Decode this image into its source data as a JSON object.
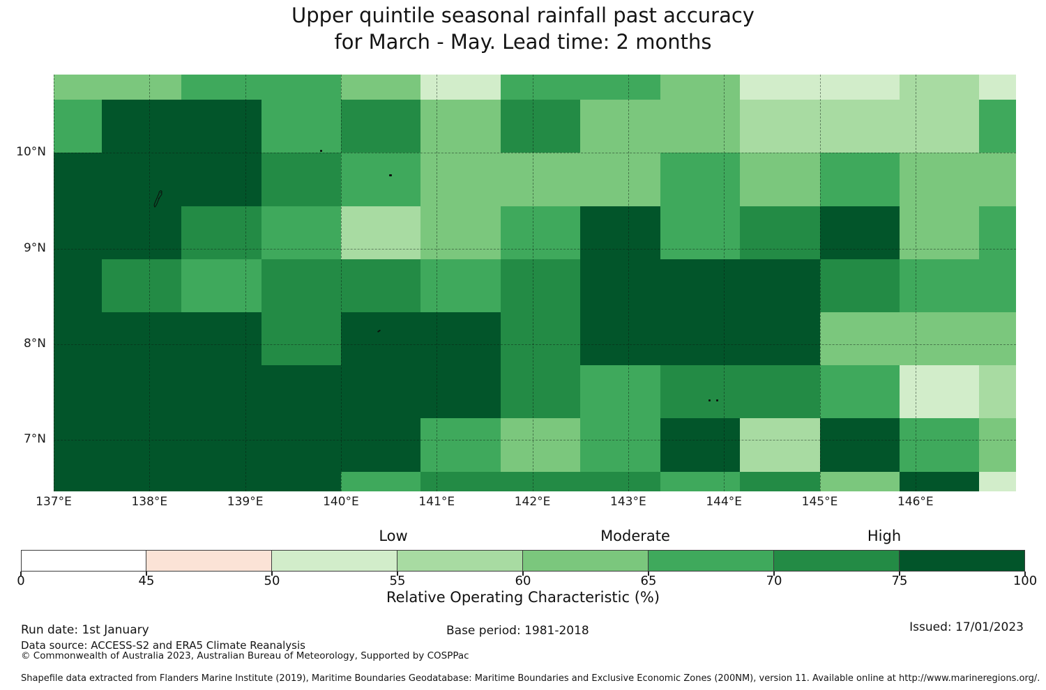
{
  "page": {
    "title_line1": "Upper quintile seasonal rainfall past accuracy",
    "title_line2": "for March - May. Lead time: 2 months"
  },
  "chart_data": {
    "type": "heatmap",
    "title": "Upper quintile seasonal rainfall past accuracy for March - May. Lead time: 2 months",
    "xlabel": "",
    "ylabel": "",
    "legend_position": "bottom",
    "grid_on": true,
    "x_axis": {
      "tick_labels": [
        "137°E",
        "138°E",
        "139°E",
        "140°E",
        "141°E",
        "142°E",
        "143°E",
        "144°E",
        "145°E",
        "146°E"
      ],
      "tick_values": [
        137,
        138,
        139,
        140,
        141,
        142,
        143,
        144,
        145,
        146
      ]
    },
    "y_axis": {
      "tick_labels": [
        "10°N",
        "9°N",
        "8°N",
        "7°N"
      ],
      "tick_values": [
        10,
        9,
        8,
        7
      ]
    },
    "lon_range": [
      137.0,
      147.05
    ],
    "lat_range": [
      6.46,
      10.82
    ],
    "grid": {
      "lon_edges": [
        137.0,
        137.5,
        138.3333,
        139.1667,
        140.0,
        140.8333,
        141.6667,
        142.5,
        143.3333,
        144.1667,
        145.0,
        145.8333,
        146.6667,
        147.05
      ],
      "lat_edges": [
        10.82,
        10.5556,
        10.0,
        9.4444,
        8.8889,
        8.3333,
        7.7778,
        7.2222,
        6.6667,
        6.46
      ],
      "value_units": "ROC %",
      "values_roc_bins": [
        [
          "60-65",
          "60-65",
          "65-70",
          "65-70",
          "60-65",
          "50-55",
          "65-70",
          "65-70",
          "60-65",
          "50-55",
          "50-55",
          "55-60",
          "50-55"
        ],
        [
          "65-70",
          "75-100",
          "75-100",
          "65-70",
          "70-75",
          "60-65",
          "70-75",
          "60-65",
          "60-65",
          "55-60",
          "55-60",
          "55-60",
          "65-70"
        ],
        [
          "75-100",
          "75-100",
          "75-100",
          "70-75",
          "65-70",
          "60-65",
          "60-65",
          "60-65",
          "65-70",
          "60-65",
          "65-70",
          "60-65",
          "60-65"
        ],
        [
          "75-100",
          "75-100",
          "70-75",
          "65-70",
          "55-60",
          "60-65",
          "65-70",
          "75-100",
          "65-70",
          "70-75",
          "75-100",
          "60-65",
          "65-70"
        ],
        [
          "75-100",
          "70-75",
          "65-70",
          "70-75",
          "70-75",
          "65-70",
          "70-75",
          "75-100",
          "75-100",
          "75-100",
          "70-75",
          "65-70",
          "65-70"
        ],
        [
          "75-100",
          "75-100",
          "75-100",
          "70-75",
          "75-100",
          "75-100",
          "70-75",
          "75-100",
          "75-100",
          "75-100",
          "60-65",
          "60-65",
          "60-65"
        ],
        [
          "75-100",
          "75-100",
          "75-100",
          "75-100",
          "75-100",
          "75-100",
          "70-75",
          "65-70",
          "70-75",
          "70-75",
          "65-70",
          "50-55",
          "55-60"
        ],
        [
          "75-100",
          "75-100",
          "75-100",
          "75-100",
          "75-100",
          "65-70",
          "60-65",
          "65-70",
          "75-100",
          "55-60",
          "75-100",
          "65-70",
          "60-65"
        ],
        [
          "75-100",
          "75-100",
          "75-100",
          "75-100",
          "65-70",
          "70-75",
          "70-75",
          "70-75",
          "65-70",
          "70-75",
          "60-65",
          "75-100",
          "50-55"
        ]
      ]
    },
    "legend_bins": [
      {
        "range": "0-45",
        "color": "#ffffff"
      },
      {
        "range": "45-50",
        "color": "#fbe3d6"
      },
      {
        "range": "50-55",
        "color": "#d2edca"
      },
      {
        "range": "55-60",
        "color": "#a8dba2"
      },
      {
        "range": "60-65",
        "color": "#7bc77d"
      },
      {
        "range": "65-70",
        "color": "#3fa95c"
      },
      {
        "range": "70-75",
        "color": "#238b45"
      },
      {
        "range": "75-100",
        "color": "#02552a"
      }
    ],
    "islands": [
      {
        "name": "yap-island-outline",
        "lon": 138.09,
        "lat": 9.52,
        "w": 18,
        "h": 26
      },
      {
        "name": "ulithi-islet",
        "lon": 139.79,
        "lat": 10.02,
        "w": 3,
        "h": 3
      },
      {
        "name": "fais-islet",
        "lon": 140.52,
        "lat": 9.77,
        "w": 4,
        "h": 3
      },
      {
        "name": "sorol-islet",
        "lon": 140.4,
        "lat": 8.14,
        "w": 5,
        "h": 2
      },
      {
        "name": "woleai-islet-west",
        "lon": 143.85,
        "lat": 7.41,
        "w": 3,
        "h": 3
      },
      {
        "name": "woleai-islet-east",
        "lon": 143.93,
        "lat": 7.41,
        "w": 3,
        "h": 3
      }
    ]
  },
  "colorbar": {
    "category_labels": [
      {
        "text": "Low",
        "anchor_value": 55
      },
      {
        "text": "Moderate",
        "anchor_value": 65
      },
      {
        "text": "High",
        "anchor_value": 75
      }
    ],
    "tick_labels": [
      "0",
      "45",
      "50",
      "55",
      "60",
      "65",
      "70",
      "75",
      "100"
    ],
    "axis_label": "Relative Operating Characteristic (%)"
  },
  "footer": {
    "run_date": "Run date: 1st January",
    "base_period": "Base period: 1981-2018",
    "issued": "Issued: 17/01/2023",
    "data_source": "Data source: ACCESS-S2 and ERA5 Climate Reanalysis",
    "copyright": "© Commonwealth of Australia 2023, Australian Bureau of Meteorology, Supported by COSPPac",
    "shapefile_note": "Shapefile data extracted from Flanders Marine Institute (2019), Maritime Boundaries Geodatabase: Maritime Boundaries and Exclusive Economic Zones (200NM), version 11. Available online at http://www.marineregions.org/."
  }
}
